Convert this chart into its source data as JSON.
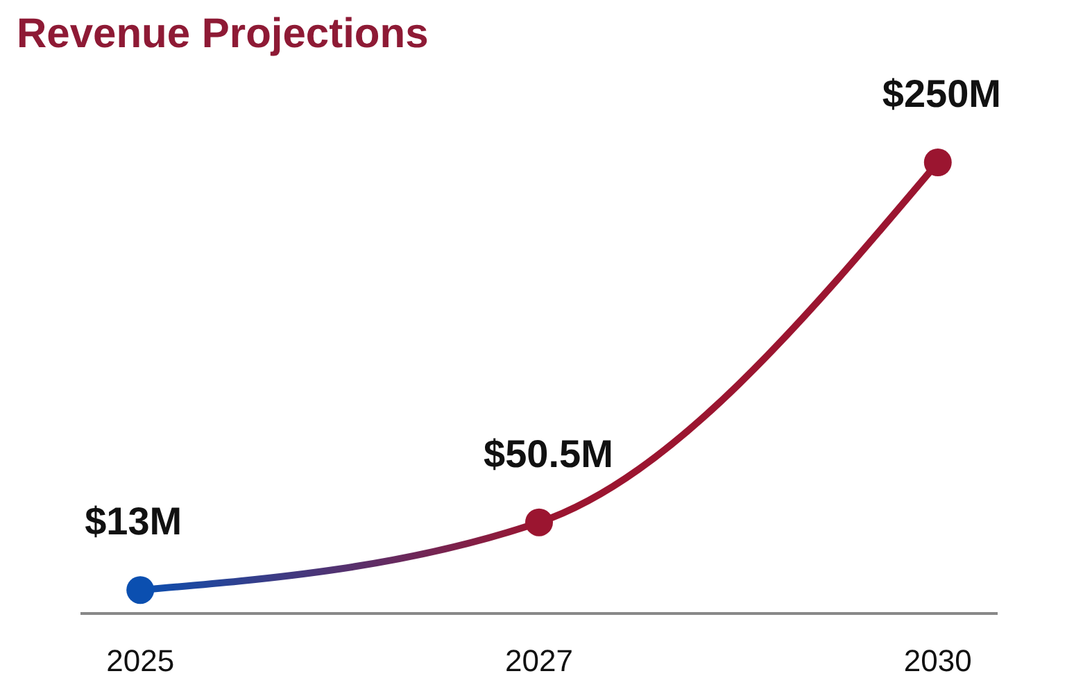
{
  "chart_data": {
    "type": "line",
    "title": "Revenue Projections",
    "categories": [
      "2025",
      "2027",
      "2030"
    ],
    "series": [
      {
        "values": [
          13,
          50.5,
          250
        ],
        "value_labels": [
          "$13M",
          "$50.5M",
          "$250M"
        ],
        "colors": [
          "#0b4fb0",
          "#9b1530",
          "#9b1530"
        ]
      }
    ],
    "marker": "circle",
    "grid": false
  }
}
